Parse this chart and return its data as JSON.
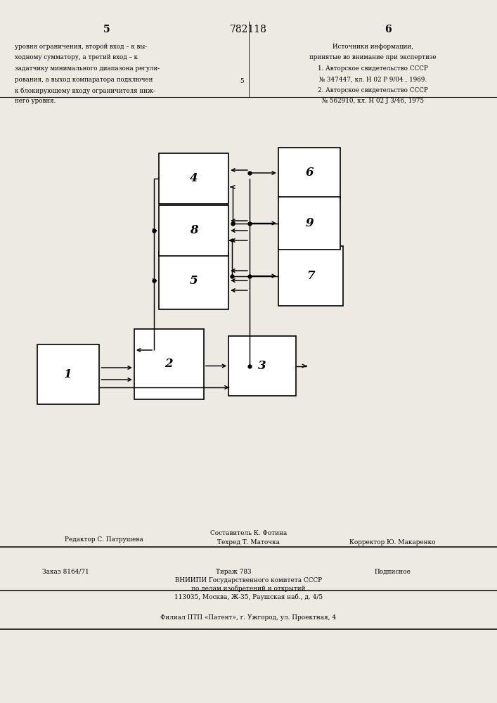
{
  "bg_color": "#edeae4",
  "blocks": {
    "1": [
      0.075,
      0.49,
      0.125,
      0.085
    ],
    "2": [
      0.27,
      0.468,
      0.14,
      0.1
    ],
    "3": [
      0.46,
      0.478,
      0.135,
      0.085
    ],
    "4": [
      0.32,
      0.218,
      0.14,
      0.072
    ],
    "5": [
      0.32,
      0.358,
      0.14,
      0.082
    ],
    "6": [
      0.56,
      0.21,
      0.125,
      0.072
    ],
    "7": [
      0.56,
      0.35,
      0.13,
      0.085
    ],
    "8": [
      0.32,
      0.292,
      0.14,
      0.072
    ],
    "9": [
      0.56,
      0.28,
      0.125,
      0.075
    ]
  },
  "top_left_lines": [
    "уровня ограничения, второй вход – к вы-",
    "ходному сумматору, а третий вход – к",
    "задатчику минимального диапазона регули-",
    "рования, а выход компаратора подключен",
    "к блокирующему входу ограничителя ниж-",
    "него уровня."
  ],
  "top_right_lines": [
    "Источники информации,",
    "принятые во внимание при экспертизе",
    "1. Авторское свидетельство СССР",
    "№ 347447, кл. Н 02 Р 9/04 , 1969.",
    "2. Авторское свидетельство СССР",
    "№ 562910, кл. Н 02 J 3/46, 1975"
  ],
  "bottom": {
    "editor": "Редактор С. Патрушева",
    "compiler_top": "Составитель К. Фотина",
    "techred": "Техред Т. Маточка",
    "corrector": "Корректор Ю. Макаренко",
    "order": "Заказ 8164/71",
    "tirazh": "Тираж 783",
    "podpisnoe": "Подписное",
    "org1": "ВНИИПИ Государственного комитета СССР",
    "org2": "по делам изобретений и открытий",
    "org3": "113035, Москва, Ж-35, Раушская наб., д. 4/5",
    "filial": "Филиал ПТП «Патент», г. Ужгород, ул. Проектная, 4"
  }
}
